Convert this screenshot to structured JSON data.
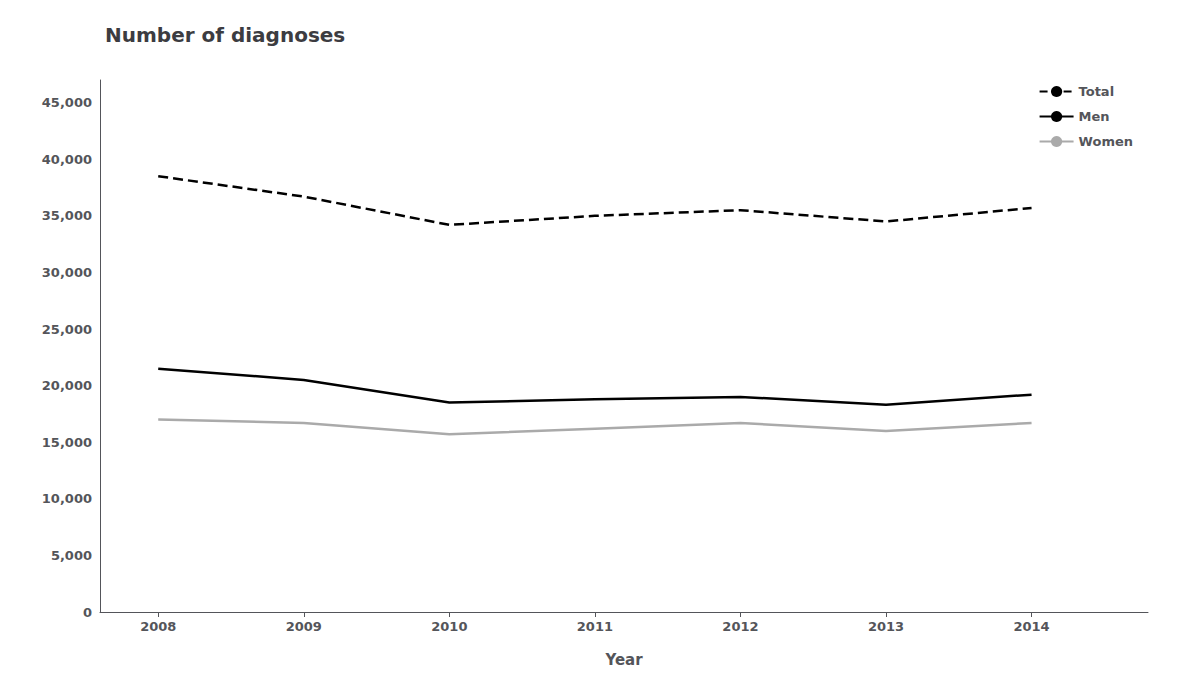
{
  "chart_data": {
    "type": "line",
    "title": "Number of diagnoses",
    "xlabel": "Year",
    "x": [
      2008,
      2009,
      2010,
      2011,
      2012,
      2013,
      2014
    ],
    "series": [
      {
        "name": "Total",
        "color": "#000000",
        "line_style": "dashed",
        "values": [
          38500,
          36700,
          34200,
          35000,
          35500,
          34500,
          35700
        ]
      },
      {
        "name": "Men",
        "color": "#000000",
        "line_style": "solid",
        "values": [
          21500,
          20500,
          18500,
          18800,
          19000,
          18300,
          19200
        ]
      },
      {
        "name": "Women",
        "color": "#aaaaaa",
        "line_style": "solid",
        "values": [
          17000,
          16700,
          15700,
          16200,
          16700,
          16000,
          16700
        ]
      }
    ],
    "xlim": [
      2007.6,
      2014.8
    ],
    "xticks": [
      2008,
      2009,
      2010,
      2011,
      2012,
      2013,
      2014
    ],
    "ylim": [
      0,
      47000
    ],
    "yticks": [
      0,
      {
        "value": 5000,
        "label": "5,000"
      },
      {
        "value": 10000,
        "label": "10,000"
      },
      {
        "value": 15000,
        "label": "15,000"
      },
      {
        "value": 20000,
        "label": "20,000"
      },
      {
        "value": 25000,
        "label": "25,000"
      },
      {
        "value": 30000,
        "label": "30,000"
      },
      {
        "value": 35000,
        "label": "35,000"
      },
      {
        "value": 40000,
        "label": "40,000"
      },
      {
        "value": 45000,
        "label": "45,000"
      }
    ],
    "grid": false,
    "legend": "upper right"
  }
}
